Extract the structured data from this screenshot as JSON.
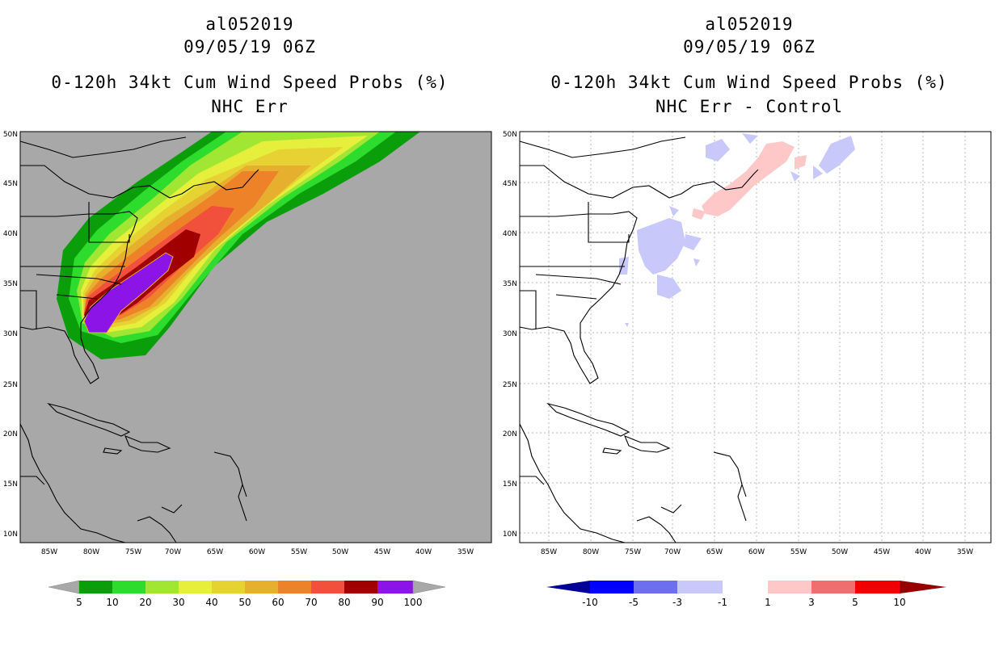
{
  "left_panel": {
    "storm_id": "al052019",
    "datetime": "09/05/19 06Z",
    "product": "0-120h 34kt Cum Wind Speed Probs (%)",
    "subtitle": "NHC Err",
    "colors": {
      "background": "#a8a8a8",
      "p5": "#0b9e0b",
      "p10": "#2ddc2d",
      "p20": "#a0e632",
      "p30": "#e6f03c",
      "p40": "#e6d232",
      "p50": "#e6af2d",
      "p60": "#ee8228",
      "p70": "#f0503c",
      "p80": "#a00000",
      "p90": "#8c14e6",
      "p100": "#a8a8a8"
    },
    "colorbar_labels": [
      "5",
      "10",
      "20",
      "30",
      "40",
      "50",
      "60",
      "70",
      "80",
      "90",
      "100"
    ]
  },
  "right_panel": {
    "storm_id": "al052019",
    "datetime": "09/05/19 06Z",
    "product": "0-120h 34kt Cum Wind Speed Probs (%)",
    "subtitle": "NHC Err - Control",
    "colors": {
      "neg": "#c8c8fa",
      "pos": "#ffc8c8",
      "cbar": [
        "#000096",
        "#0000ff",
        "#6e6ef0",
        "#c8c8fa",
        "#ffffff",
        "#ffc8c8",
        "#f06e6e",
        "#f00000",
        "#960000"
      ]
    },
    "colorbar_labels": [
      "-10",
      "-5",
      "-3",
      "-1",
      "1",
      "3",
      "5",
      "10"
    ]
  },
  "axes": {
    "lon_labels": [
      "85W",
      "80W",
      "75W",
      "70W",
      "65W",
      "60W",
      "55W",
      "50W",
      "45W",
      "40W",
      "35W"
    ],
    "lat_labels": [
      "10N",
      "15N",
      "20N",
      "25N",
      "30N",
      "35N",
      "40N",
      "45N",
      "50N"
    ]
  }
}
